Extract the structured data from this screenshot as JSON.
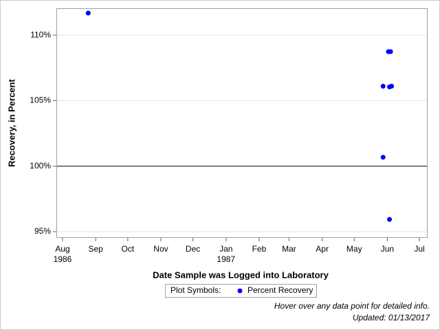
{
  "chart_data": {
    "type": "scatter",
    "xlabel": "Date Sample was Logged into Laboratory",
    "ylabel": "Recovery, in Percent",
    "legend_title": "Plot Symbols:",
    "series": [
      {
        "name": "Percent Recovery",
        "color": "#0000ff",
        "x": [
          24,
          305,
          307,
          300,
          306,
          308,
          300,
          306
        ],
        "values": [
          111.68,
          108.74,
          108.74,
          106.1,
          106.05,
          106.1,
          100.68,
          95.94
        ]
      }
    ],
    "xlim": [
      -5.8,
      341.7
    ],
    "xticks": [
      {
        "value": 0,
        "label": "Aug 1986"
      },
      {
        "value": 31,
        "label": "Sep"
      },
      {
        "value": 61,
        "label": "Oct"
      },
      {
        "value": 92,
        "label": "Nov"
      },
      {
        "value": 122,
        "label": "Dec"
      },
      {
        "value": 153,
        "label": "Jan 1987"
      },
      {
        "value": 184,
        "label": "Feb"
      },
      {
        "value": 212,
        "label": "Mar"
      },
      {
        "value": 243,
        "label": "Apr"
      },
      {
        "value": 273,
        "label": "May"
      },
      {
        "value": 304,
        "label": "Jun"
      },
      {
        "value": 334,
        "label": "Jul"
      }
    ],
    "ylim": [
      94.53,
      112.05
    ],
    "yticks": [
      {
        "value": 95,
        "label": "95%"
      },
      {
        "value": 100,
        "label": "100%"
      },
      {
        "value": 105,
        "label": "105%"
      },
      {
        "value": 110,
        "label": "110%"
      }
    ],
    "refline": 100,
    "grid": true,
    "footnotes": [
      "Hover over any data point for detailed info.",
      "Updated: 01/13/2017"
    ]
  }
}
